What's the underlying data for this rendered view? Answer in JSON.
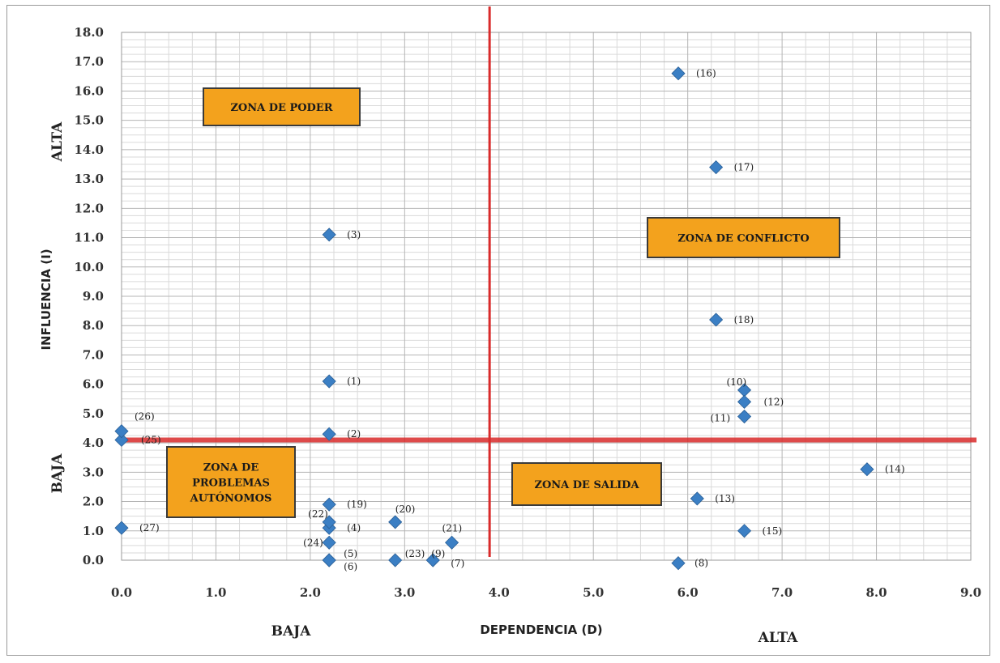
{
  "chart_data": {
    "type": "scatter",
    "title": "",
    "xlabel": "DEPENDENCIA (D)",
    "ylabel": "INFLUENCIA (I)",
    "xlim": [
      0,
      9
    ],
    "ylim": [
      0,
      18
    ],
    "x_ticks": [
      "0.0",
      "1.0",
      "2.0",
      "3.0",
      "4.0",
      "5.0",
      "6.0",
      "7.0",
      "8.0",
      "9.0"
    ],
    "y_ticks": [
      "0.0",
      "1.0",
      "2.0",
      "3.0",
      "4.0",
      "5.0",
      "6.0",
      "7.0",
      "8.0",
      "9.0",
      "10.0",
      "11.0",
      "12.0",
      "13.0",
      "14.0",
      "15.0",
      "16.0",
      "17.0",
      "18.0"
    ],
    "grid": true,
    "x_low_label": "BAJA",
    "x_high_label": "ALTA",
    "y_low_label": "BAJA",
    "y_high_label": "ALTA",
    "vertical_divider_x": 3.9,
    "horizontal_divider_y": 4.1,
    "divider_color": "#d92b2b",
    "marker_color": "#3b7fc4",
    "zone_color": "#f3a21d",
    "zones": [
      {
        "lines": [
          "ZONA DE PODER"
        ]
      },
      {
        "lines": [
          "ZONA DE CONFLICTO"
        ]
      },
      {
        "lines": [
          "ZONA DE",
          "PROBLEMAS",
          "AUTÓNOMOS"
        ]
      },
      {
        "lines": [
          "ZONA DE SALIDA"
        ]
      }
    ],
    "points": [
      {
        "label": "(1)",
        "x": 2.2,
        "y": 6.1
      },
      {
        "label": "(2)",
        "x": 2.2,
        "y": 4.3
      },
      {
        "label": "(3)",
        "x": 2.2,
        "y": 11.1
      },
      {
        "label": "(4)",
        "x": 2.2,
        "y": 1.1
      },
      {
        "label": "(5)",
        "x": 2.2,
        "y": 0.0
      },
      {
        "label": "(6)",
        "x": 2.2,
        "y": 0.0
      },
      {
        "label": "(7)",
        "x": 3.3,
        "y": 0.0
      },
      {
        "label": "(8)",
        "x": 5.9,
        "y": -0.1
      },
      {
        "label": "(9)",
        "x": 3.3,
        "y": 0.0
      },
      {
        "label": "(10)",
        "x": 6.6,
        "y": 5.8
      },
      {
        "label": "(11)",
        "x": 6.6,
        "y": 4.9
      },
      {
        "label": "(12)",
        "x": 6.6,
        "y": 5.4
      },
      {
        "label": "(13)",
        "x": 6.1,
        "y": 2.1
      },
      {
        "label": "(14)",
        "x": 7.9,
        "y": 3.1
      },
      {
        "label": "(15)",
        "x": 6.6,
        "y": 1.0
      },
      {
        "label": "(16)",
        "x": 5.9,
        "y": 16.6
      },
      {
        "label": "(17)",
        "x": 6.3,
        "y": 13.4
      },
      {
        "label": "(18)",
        "x": 6.3,
        "y": 8.2
      },
      {
        "label": "(19)",
        "x": 2.2,
        "y": 1.9
      },
      {
        "label": "(20)",
        "x": 2.9,
        "y": 1.3
      },
      {
        "label": "(21)",
        "x": 3.5,
        "y": 0.6
      },
      {
        "label": "(22)",
        "x": 2.2,
        "y": 1.3
      },
      {
        "label": "(23)",
        "x": 2.9,
        "y": 0.0
      },
      {
        "label": "(24)",
        "x": 2.2,
        "y": 0.6
      },
      {
        "label": "(25)",
        "x": 0.0,
        "y": 4.1
      },
      {
        "label": "(26)",
        "x": 0.0,
        "y": 4.4
      },
      {
        "label": "(27)",
        "x": 0.0,
        "y": 1.1
      }
    ]
  }
}
